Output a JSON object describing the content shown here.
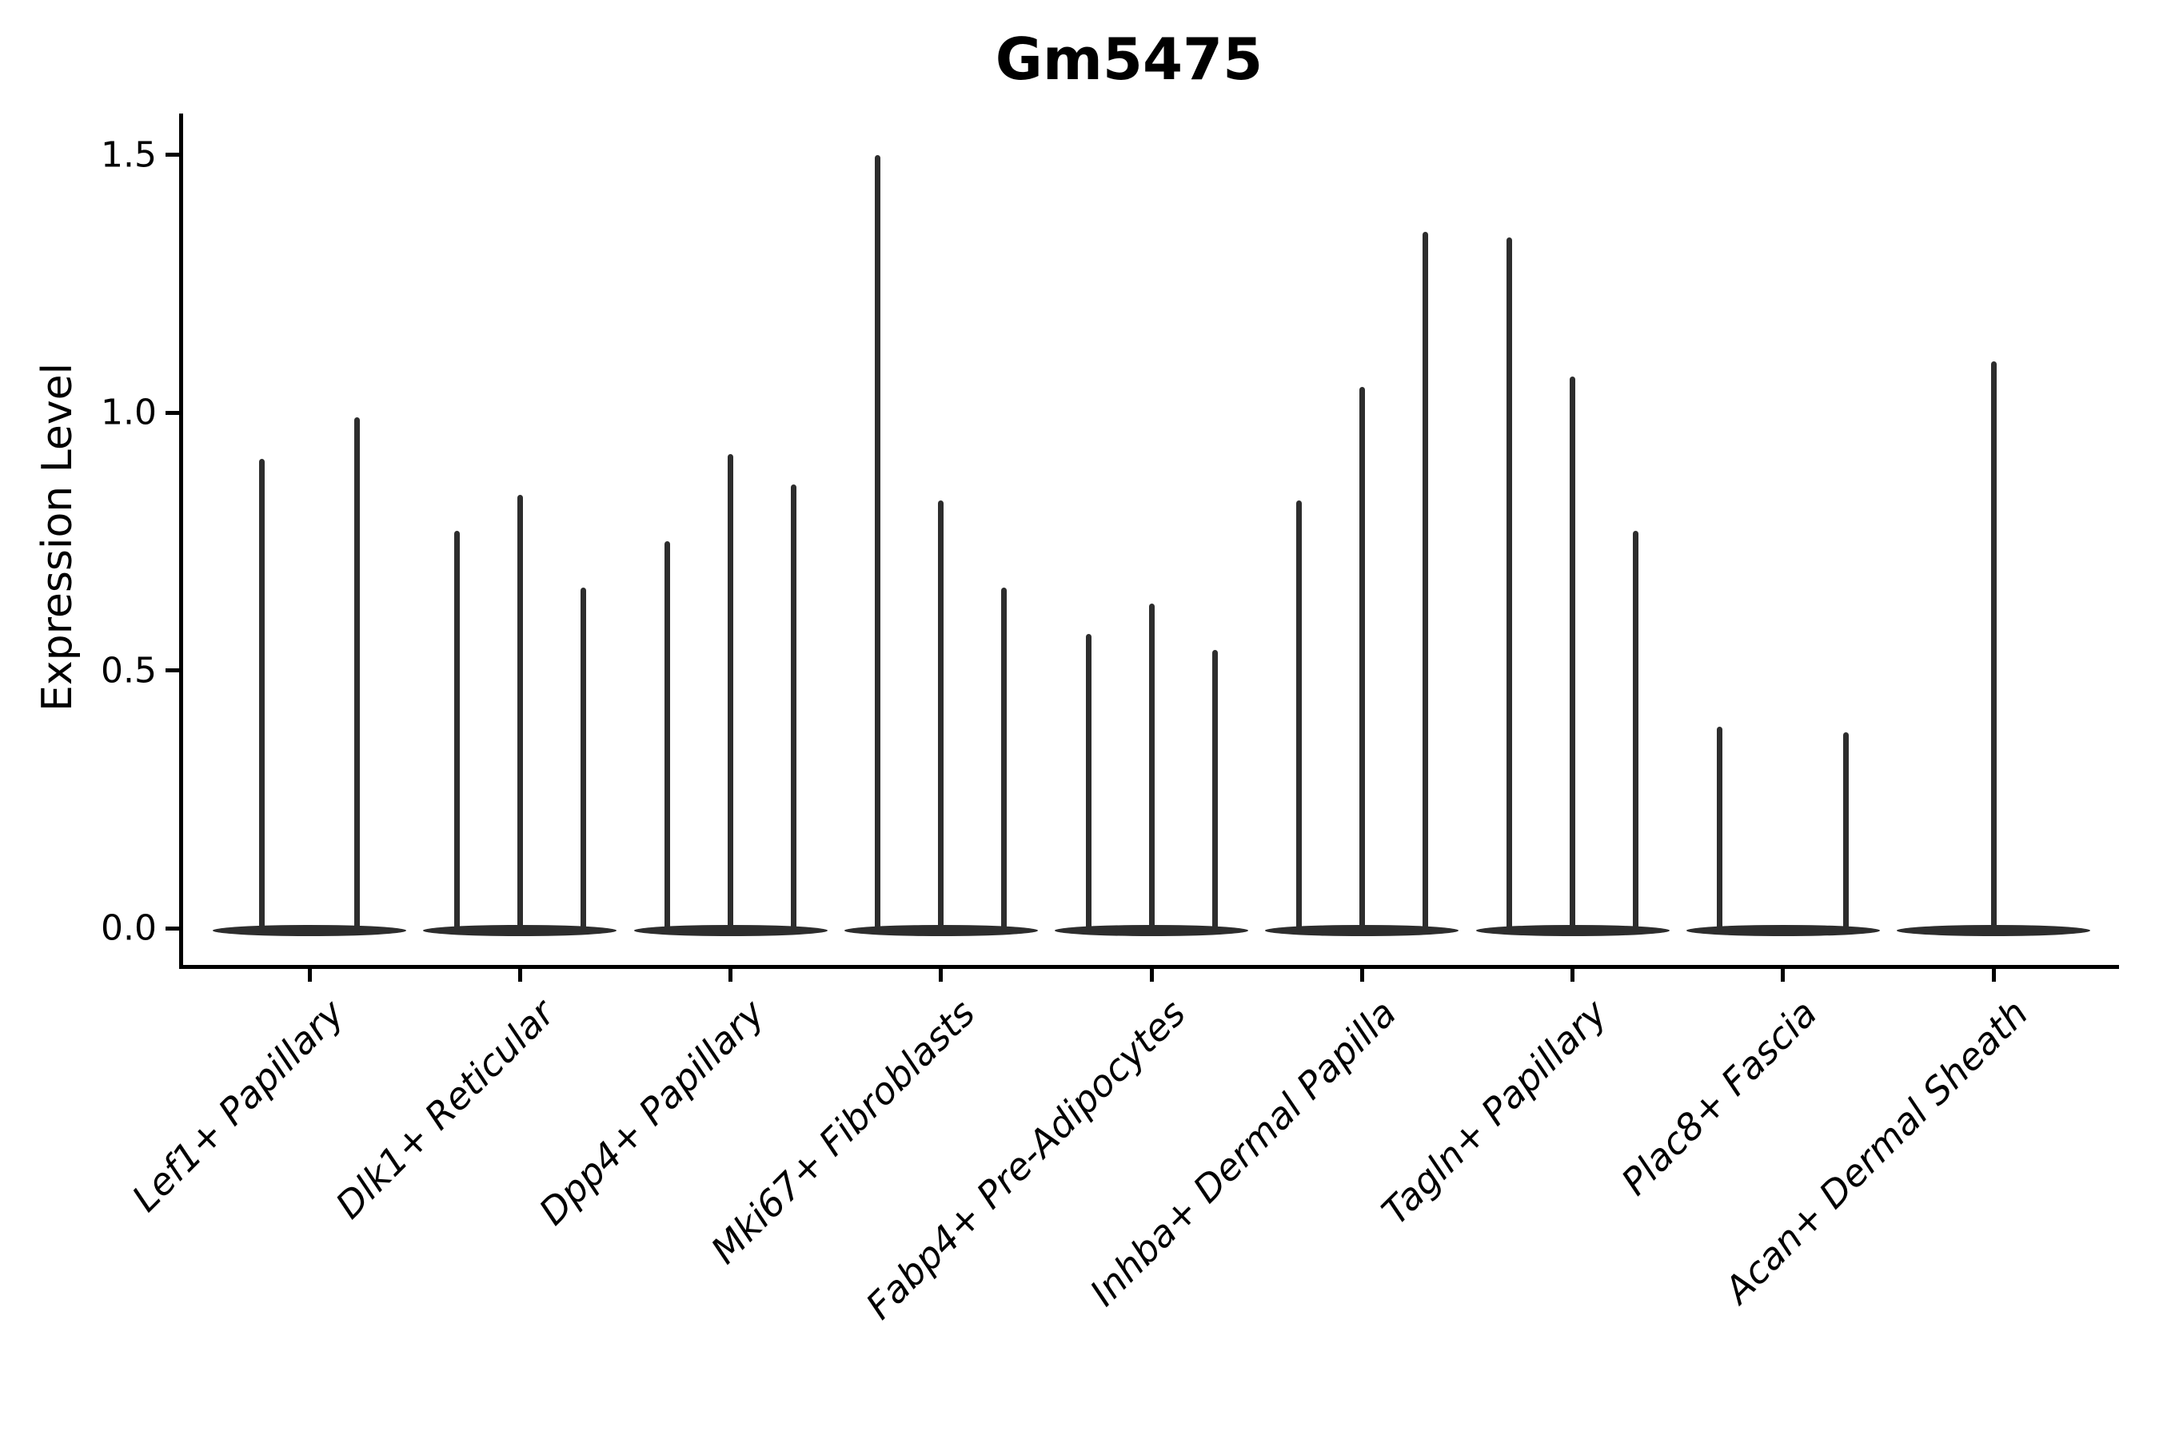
{
  "title": "Gm5475",
  "chart_data": {
    "type": "violin",
    "title": "Gm5475",
    "subtitle": "",
    "xlabel": "",
    "ylabel": "Expression Level",
    "ylim": [
      -0.07,
      1.58
    ],
    "grid": false,
    "legend_position": "none",
    "violin_color": "#2d2d2d",
    "axis_color": "#000000",
    "background_color": "#ffffff",
    "yticks": {
      "values": [
        0.0,
        0.5,
        1.0,
        1.5
      ],
      "labels": [
        "0.0",
        "0.5",
        "1.0",
        "1.5"
      ]
    },
    "categories": [
      "Lef1+ Papillary",
      "Dlk1+ Reticular",
      "Dpp4+ Papillary",
      "Mki67+ Fibroblasts",
      "Fabp4+ Pre-Adipocytes",
      "Inhba+ Dermal Papilla",
      "Tagln+ Papillary",
      "Plac8+ Fascia",
      "Acan+ Dermal Sheath"
    ],
    "series": [
      {
        "category": "Lef1+ Papillary",
        "violin_max_values": [
          0.91,
          0.99
        ]
      },
      {
        "category": "Dlk1+ Reticular",
        "violin_max_values": [
          0.77,
          0.84,
          0.66
        ]
      },
      {
        "category": "Dpp4+ Papillary",
        "violin_max_values": [
          0.75,
          0.92,
          0.86
        ]
      },
      {
        "category": "Mki67+ Fibroblasts",
        "violin_max_values": [
          1.5,
          0.83,
          0.66
        ]
      },
      {
        "category": "Fabp4+ Pre-Adipocytes",
        "violin_max_values": [
          0.57,
          0.63,
          0.54
        ]
      },
      {
        "category": "Inhba+ Dermal Papilla",
        "violin_max_values": [
          0.83,
          1.05,
          1.35
        ]
      },
      {
        "category": "Tagln+ Papillary",
        "violin_max_values": [
          1.34,
          1.07,
          0.77
        ]
      },
      {
        "category": "Plac8+ Fascia",
        "violin_max_values": [
          0.39,
          0.0,
          0.38
        ]
      },
      {
        "category": "Acan+ Dermal Sheath",
        "violin_max_values": [
          1.1
        ]
      }
    ]
  }
}
